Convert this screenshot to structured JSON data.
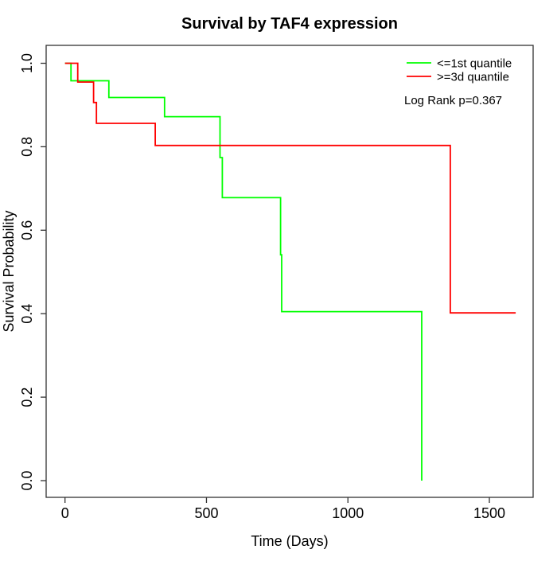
{
  "chart_data": {
    "type": "line",
    "subtype": "kaplan_meier_step",
    "title": "Survival by TAF4 expression",
    "xlabel": "Time (Days)",
    "ylabel": "Survival Probability",
    "xlim": [
      0,
      1600
    ],
    "ylim": [
      0.0,
      1.0
    ],
    "x_ticks": [
      0,
      500,
      1000,
      1500
    ],
    "y_ticks": [
      0.0,
      0.2,
      0.4,
      0.6,
      0.8,
      1.0
    ],
    "grid": false,
    "legend_position": "top-right",
    "annotation": "Log Rank p=0.367",
    "series": [
      {
        "name": "<=1st quantile",
        "color": "#00ff00",
        "steps": [
          [
            0,
            1.0
          ],
          [
            21,
            0.958
          ],
          [
            155,
            0.918
          ],
          [
            352,
            0.872
          ],
          [
            548,
            0.774
          ],
          [
            556,
            0.678
          ],
          [
            762,
            0.541
          ],
          [
            766,
            0.405
          ],
          [
            1261,
            0.0
          ]
        ],
        "end_time": 1261
      },
      {
        "name": ">=3d quantile",
        "color": "#ff0000",
        "steps": [
          [
            0,
            1.0
          ],
          [
            45,
            0.955
          ],
          [
            101,
            0.906
          ],
          [
            111,
            0.856
          ],
          [
            319,
            0.803
          ],
          [
            1362,
            0.402
          ]
        ],
        "end_time": 1593
      }
    ]
  },
  "colors": {
    "curve_green": "#00ff00",
    "curve_red": "#ff0000",
    "axis": "#333333",
    "text": "#000000",
    "background": "#ffffff"
  }
}
